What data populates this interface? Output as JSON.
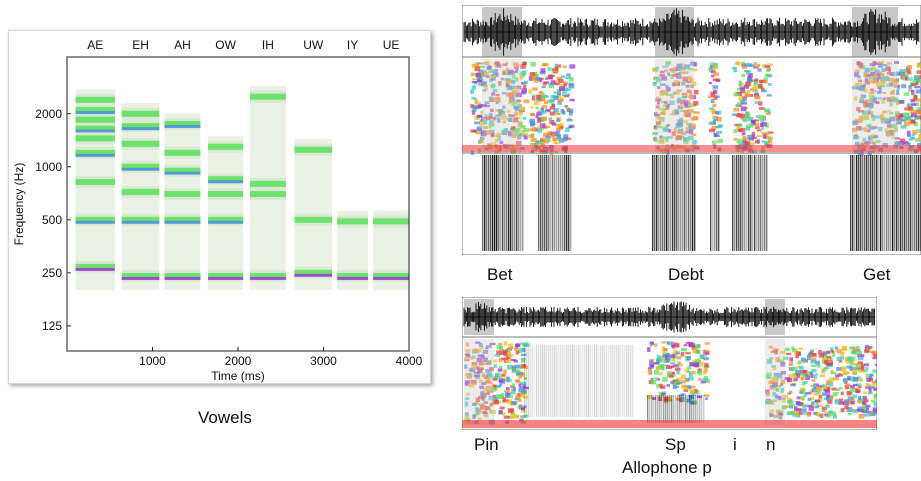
{
  "vowel_panel": {
    "chart_data": {
      "type": "heatmap",
      "title": "",
      "xlabel": "Time (ms)",
      "ylabel": "Frequency (Hz)",
      "xlim": [
        0,
        4000
      ],
      "y_scale": "log",
      "ylim": [
        90,
        4200
      ],
      "x_ticks": [
        1000,
        2000,
        3000,
        4000
      ],
      "y_ticks": [
        125,
        250,
        500,
        1000,
        2000
      ],
      "vowel_labels": [
        "AE",
        "EH",
        "AH",
        "OW",
        "IH",
        "UW",
        "IY",
        "UE"
      ],
      "segments": [
        {
          "vowel": "AE",
          "start": 100,
          "end": 560,
          "formant_bands": [
            270,
            500,
            820,
            1200,
            1450,
            1650,
            1850,
            2100,
            2400
          ]
        },
        {
          "vowel": "EH",
          "start": 640,
          "end": 1080,
          "formant_bands": [
            240,
            500,
            720,
            1000,
            1350,
            1700,
            2000
          ]
        },
        {
          "vowel": "AH",
          "start": 1140,
          "end": 1560,
          "formant_bands": [
            240,
            500,
            700,
            950,
            1200,
            1750
          ]
        },
        {
          "vowel": "OW",
          "start": 1650,
          "end": 2060,
          "formant_bands": [
            240,
            500,
            700,
            850,
            1300
          ]
        },
        {
          "vowel": "IH",
          "start": 2140,
          "end": 2560,
          "formant_bands": [
            240,
            700,
            800,
            2500
          ]
        },
        {
          "vowel": "UW",
          "start": 2660,
          "end": 3100,
          "formant_bands": [
            250,
            500,
            1250
          ]
        },
        {
          "vowel": "IY",
          "start": 3160,
          "end": 3520,
          "formant_bands": [
            240,
            490
          ]
        },
        {
          "vowel": "UE",
          "start": 3580,
          "end": 4000,
          "formant_bands": [
            240,
            490
          ]
        }
      ]
    },
    "caption": "Vowels"
  },
  "words_panel": {
    "captions": [
      "Bet",
      "Debt",
      "Get"
    ]
  },
  "allophone_panel": {
    "captions": [
      "Pin",
      "Sp",
      "i",
      "n"
    ],
    "subcaption": "Allophone p"
  },
  "colors": {
    "band_green": "#5fe05f",
    "band_purple": "#9b38d8",
    "band_blue": "#4a8de0",
    "band_pale": "#d8e8d0",
    "highlight_gray": "#c8c8c8",
    "red_floor": "#e33"
  }
}
